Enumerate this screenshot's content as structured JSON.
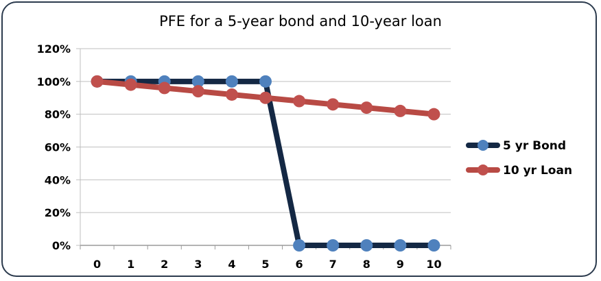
{
  "chart_data": {
    "type": "line",
    "title": "PFE for a 5-year bond and 10-year loan",
    "xlabel": "",
    "ylabel": "",
    "x": [
      0,
      1,
      2,
      3,
      4,
      5,
      6,
      7,
      8,
      9,
      10
    ],
    "ylim": [
      0,
      120
    ],
    "yticks": [
      "0%",
      "20%",
      "40%",
      "60%",
      "80%",
      "100%",
      "120%"
    ],
    "grid": true,
    "legend_position": "right",
    "series": [
      {
        "name": "5 yr Bond",
        "line_color": "#142844",
        "marker_color": "#4f81bd",
        "values": [
          100,
          100,
          100,
          100,
          100,
          100,
          0,
          0,
          0,
          0,
          0
        ]
      },
      {
        "name": "10 yr Loan",
        "line_color": "#b84a44",
        "marker_color": "#c0504d",
        "values": [
          100,
          98,
          96,
          94,
          92,
          90,
          88,
          86,
          84,
          82,
          80
        ]
      }
    ]
  }
}
